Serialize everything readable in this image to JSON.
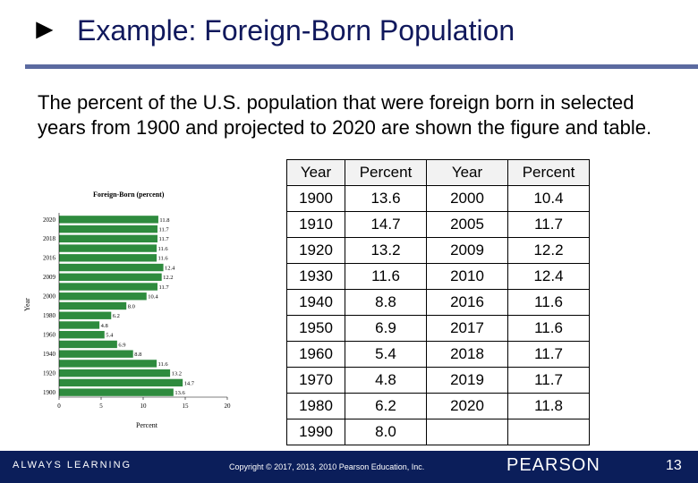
{
  "slide": {
    "title": "Example: Foreign-Born Population",
    "intro": "The percent of the U.S. population that were foreign born in selected years from 1900  and projected to 2020 are shown the figure and table."
  },
  "table": {
    "headers": [
      "Year",
      "Percent",
      "Year",
      "Percent"
    ],
    "rows": [
      [
        "1900",
        "13.6",
        "2000",
        "10.4"
      ],
      [
        "1910",
        "14.7",
        "2005",
        "11.7"
      ],
      [
        "1920",
        "13.2",
        "2009",
        "12.2"
      ],
      [
        "1930",
        "11.6",
        "2010",
        "12.4"
      ],
      [
        "1940",
        "8.8",
        "2016",
        "11.6"
      ],
      [
        "1950",
        "6.9",
        "2017",
        "11.6"
      ],
      [
        "1960",
        "5.4",
        "2018",
        "11.7"
      ],
      [
        "1970",
        "4.8",
        "2019",
        "11.7"
      ],
      [
        "1980",
        "6.2",
        "2020",
        "11.8"
      ],
      [
        "1990",
        "8.0",
        "",
        ""
      ]
    ]
  },
  "chart_data": {
    "type": "bar",
    "orientation": "horizontal",
    "title": "Foreign-Born (percent)",
    "xlabel": "Percent",
    "ylabel": "Year",
    "xlim": [
      0,
      20
    ],
    "xticks": [
      "0",
      "5",
      "10",
      "15",
      "20"
    ],
    "categories": [
      "1900",
      "1910",
      "1920",
      "1930",
      "1940",
      "1950",
      "1960",
      "1970",
      "1980",
      "1990",
      "2000",
      "2005",
      "2009",
      "2010",
      "2016",
      "2017",
      "2018",
      "2019",
      "2020"
    ],
    "values": [
      13.6,
      14.7,
      13.2,
      11.6,
      8.8,
      6.9,
      5.4,
      4.8,
      6.2,
      8.0,
      10.4,
      11.7,
      12.2,
      12.4,
      11.6,
      11.6,
      11.7,
      11.7,
      11.8
    ],
    "value_labels": [
      "13.6",
      "14.7",
      "13.2",
      "11.6",
      "8.8",
      "6.9",
      "5.4",
      "4.8",
      "6.2",
      "8.0",
      "10.4",
      "11.7",
      "12.2",
      "12.4",
      "11.6",
      "11.6",
      "11.7",
      "11.7",
      "11.8"
    ],
    "ytick_labels": [
      "1900",
      "1920",
      "1940",
      "1960",
      "1980",
      "2000",
      "2009",
      "2016",
      "2018",
      "2020"
    ],
    "bar_color": "#2e8b3e",
    "grid": false
  },
  "footer": {
    "tagline": "ALWAYS LEARNING",
    "copyright": "Copyright © 2017, 2013, 2010 Pearson Education, Inc.",
    "brand": "PEARSON",
    "page_number": "13"
  },
  "colors": {
    "title": "#10185c",
    "rule": "#5b6aa0",
    "footer_bg": "#0b1e5a",
    "bar": "#2e8b3e"
  }
}
